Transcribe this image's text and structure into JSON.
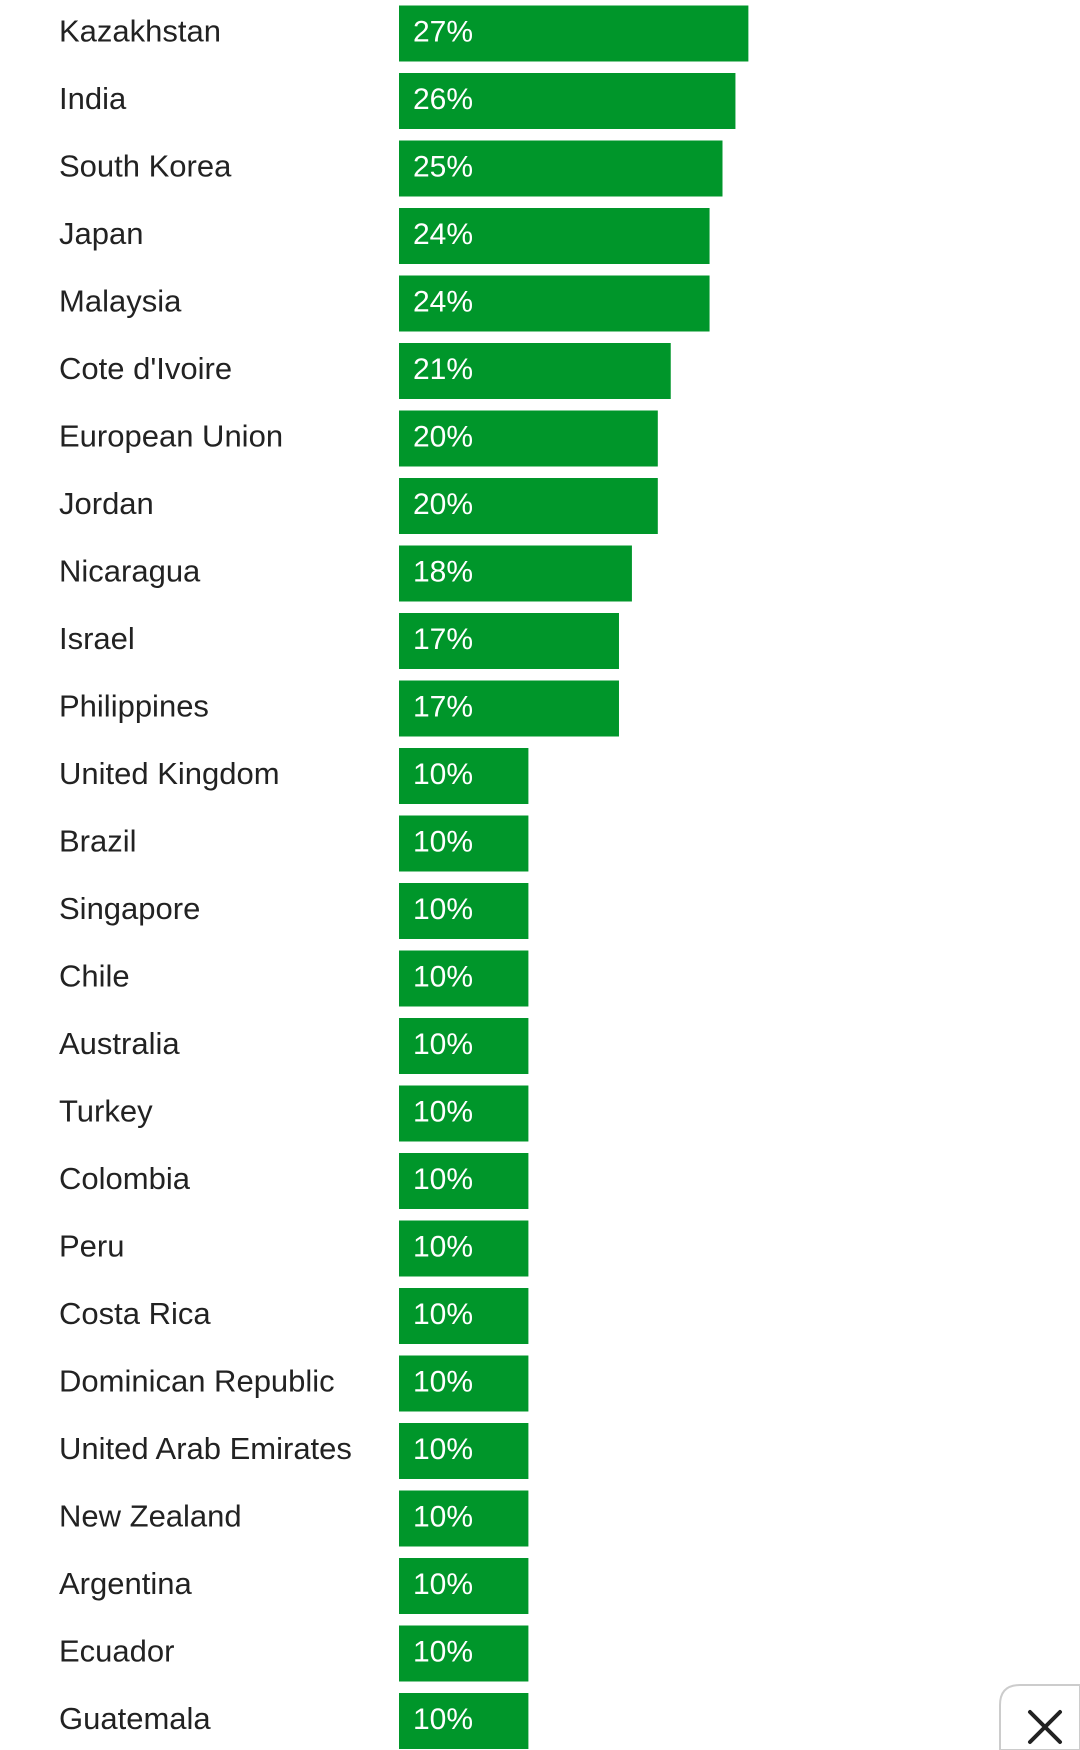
{
  "chart_data": {
    "type": "bar",
    "orientation": "horizontal",
    "color": "#00962a",
    "categories": [
      "Kazakhstan",
      "India",
      "South Korea",
      "Japan",
      "Malaysia",
      "Cote d'Ivoire",
      "European Union",
      "Jordan",
      "Nicaragua",
      "Israel",
      "Philippines",
      "United Kingdom",
      "Brazil",
      "Singapore",
      "Chile",
      "Australia",
      "Turkey",
      "Colombia",
      "Peru",
      "Costa Rica",
      "Dominican Republic",
      "United Arab Emirates",
      "New Zealand",
      "Argentina",
      "Ecuador",
      "Guatemala"
    ],
    "values": [
      27,
      26,
      25,
      24,
      24,
      21,
      20,
      20,
      18,
      17,
      17,
      10,
      10,
      10,
      10,
      10,
      10,
      10,
      10,
      10,
      10,
      10,
      10,
      10,
      10,
      10
    ],
    "value_labels": [
      "27%",
      "26%",
      "25%",
      "24%",
      "24%",
      "21%",
      "20%",
      "20%",
      "18%",
      "17%",
      "17%",
      "10%",
      "10%",
      "10%",
      "10%",
      "10%",
      "10%",
      "10%",
      "10%",
      "10%",
      "10%",
      "10%",
      "10%",
      "10%",
      "10%",
      "10%"
    ]
  }
}
